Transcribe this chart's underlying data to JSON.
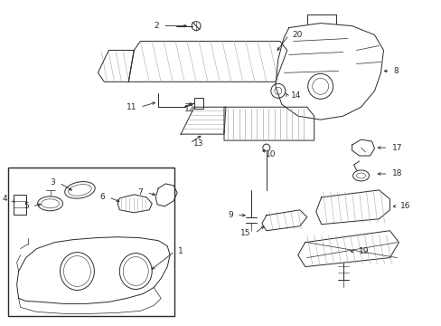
{
  "bg_color": "#ffffff",
  "line_color": "#2a2a2a",
  "gray": "#555555",
  "lgray": "#aaaaaa",
  "lw": 0.7,
  "figsize": [
    4.89,
    3.6
  ],
  "dpi": 100
}
